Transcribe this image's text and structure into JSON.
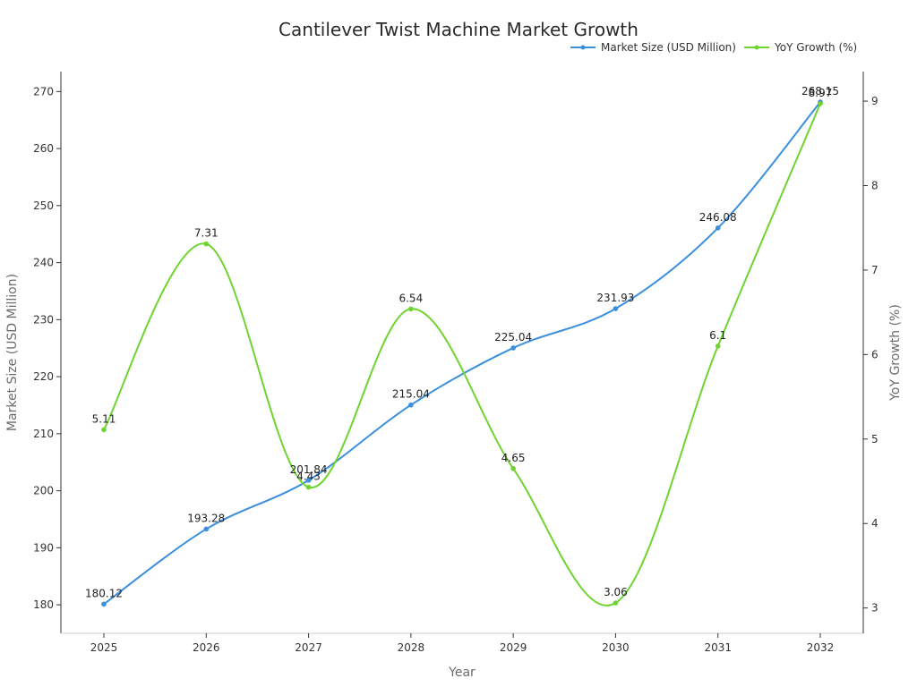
{
  "chart_data": {
    "type": "line",
    "title": "Cantilever Twist Machine Market Growth",
    "xlabel": "Year",
    "ylabel": "Market Size (USD Million)",
    "y2label": "YoY Growth (%)",
    "categories": [
      "2025",
      "2026",
      "2027",
      "2028",
      "2029",
      "2030",
      "2031",
      "2032"
    ],
    "ylim": [
      175,
      273.5
    ],
    "y2lim": [
      2.7,
      9.35
    ],
    "yticks": [
      180,
      190,
      200,
      210,
      220,
      230,
      240,
      250,
      260,
      270
    ],
    "y2ticks": [
      3,
      4,
      5,
      6,
      7,
      8,
      9
    ],
    "legend_position": "top-right",
    "grid": false,
    "series": [
      {
        "name": "Market Size (USD Million)",
        "axis": "left",
        "color": "#3a8fde",
        "values": [
          180.12,
          193.28,
          201.84,
          215.04,
          225.04,
          231.93,
          246.08,
          268.15
        ],
        "labels": [
          "180.12",
          "193.28",
          "201.84",
          "215.04",
          "225.04",
          "231.93",
          "246.08",
          "268.15"
        ]
      },
      {
        "name": "YoY Growth (%)",
        "axis": "right",
        "color": "#6ed42f",
        "values": [
          5.11,
          7.31,
          4.43,
          6.54,
          4.65,
          3.06,
          6.1,
          8.97
        ],
        "labels": [
          "5.11",
          "7.31",
          "4.43",
          "6.54",
          "4.65",
          "3.06",
          "6.1",
          "8.97"
        ]
      }
    ]
  }
}
